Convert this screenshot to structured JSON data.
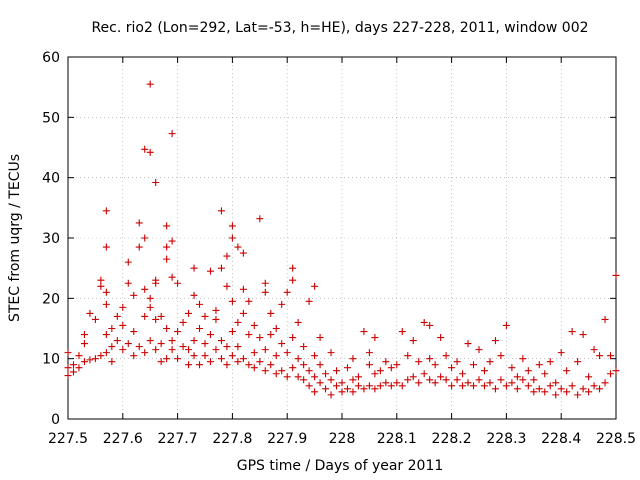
{
  "chart_data": {
    "type": "scatter",
    "title": "Rec. rio2 (Lon=292, Lat=-53, h=HE), days 227-228, 2011, window 002",
    "xlabel": "GPS time / Days of year 2011",
    "ylabel": "STEC from uqrg / TECUs",
    "xlim": [
      227.5,
      228.5
    ],
    "ylim": [
      0,
      60
    ],
    "xticks": [
      "227.5",
      "227.6",
      "227.7",
      "227.8",
      "227.9",
      "228",
      "228.1",
      "228.2",
      "228.3",
      "228.4",
      "228.5"
    ],
    "yticks": [
      "0",
      "10",
      "20",
      "30",
      "40",
      "50",
      "60"
    ],
    "grid": true,
    "marker": "plus",
    "color": "#cc0000",
    "points": [
      [
        227.5,
        7.2
      ],
      [
        227.5,
        8.5
      ],
      [
        227.5,
        11.0
      ],
      [
        227.51,
        7.8
      ],
      [
        227.51,
        9.0
      ],
      [
        227.52,
        8.5
      ],
      [
        227.52,
        10.5
      ],
      [
        227.53,
        9.5
      ],
      [
        227.53,
        12.5
      ],
      [
        227.53,
        14.0
      ],
      [
        227.54,
        9.8
      ],
      [
        227.54,
        17.5
      ],
      [
        227.55,
        10.0
      ],
      [
        227.55,
        16.5
      ],
      [
        227.56,
        10.5
      ],
      [
        227.56,
        23.0
      ],
      [
        227.56,
        22.0
      ],
      [
        227.57,
        11.0
      ],
      [
        227.57,
        14.0
      ],
      [
        227.57,
        19.0
      ],
      [
        227.57,
        21.0
      ],
      [
        227.57,
        28.5
      ],
      [
        227.57,
        34.5
      ],
      [
        227.58,
        12.0
      ],
      [
        227.58,
        15.0
      ],
      [
        227.58,
        9.5
      ],
      [
        227.59,
        13.0
      ],
      [
        227.59,
        17.0
      ],
      [
        227.6,
        11.5
      ],
      [
        227.6,
        15.5
      ],
      [
        227.6,
        18.5
      ],
      [
        227.61,
        12.5
      ],
      [
        227.61,
        22.5
      ],
      [
        227.61,
        26.0
      ],
      [
        227.62,
        10.5
      ],
      [
        227.62,
        14.5
      ],
      [
        227.62,
        20.5
      ],
      [
        227.63,
        12.0
      ],
      [
        227.63,
        28.5
      ],
      [
        227.63,
        32.5
      ],
      [
        227.64,
        11.0
      ],
      [
        227.64,
        17.0
      ],
      [
        227.64,
        21.5
      ],
      [
        227.64,
        30.0
      ],
      [
        227.64,
        44.7
      ],
      [
        227.65,
        13.0
      ],
      [
        227.65,
        18.5
      ],
      [
        227.65,
        44.2
      ],
      [
        227.65,
        55.5
      ],
      [
        227.65,
        20.0
      ],
      [
        227.66,
        11.5
      ],
      [
        227.66,
        16.5
      ],
      [
        227.66,
        22.5
      ],
      [
        227.66,
        23.0
      ],
      [
        227.66,
        39.2
      ],
      [
        227.67,
        9.5
      ],
      [
        227.67,
        12.5
      ],
      [
        227.67,
        17.0
      ],
      [
        227.68,
        10.0
      ],
      [
        227.68,
        15.0
      ],
      [
        227.68,
        26.5
      ],
      [
        227.68,
        28.5
      ],
      [
        227.68,
        32.0
      ],
      [
        227.69,
        11.5
      ],
      [
        227.69,
        13.0
      ],
      [
        227.69,
        29.5
      ],
      [
        227.69,
        47.3
      ],
      [
        227.69,
        23.5
      ],
      [
        227.7,
        10.0
      ],
      [
        227.7,
        14.5
      ],
      [
        227.7,
        22.5
      ],
      [
        227.71,
        12.0
      ],
      [
        227.71,
        16.0
      ],
      [
        227.72,
        9.0
      ],
      [
        227.72,
        11.5
      ],
      [
        227.72,
        17.5
      ],
      [
        227.73,
        10.5
      ],
      [
        227.73,
        13.0
      ],
      [
        227.73,
        20.5
      ],
      [
        227.73,
        25.0
      ],
      [
        227.74,
        9.0
      ],
      [
        227.74,
        15.0
      ],
      [
        227.74,
        19.0
      ],
      [
        227.75,
        10.5
      ],
      [
        227.75,
        12.5
      ],
      [
        227.75,
        17.0
      ],
      [
        227.76,
        9.5
      ],
      [
        227.76,
        14.0
      ],
      [
        227.76,
        24.5
      ],
      [
        227.77,
        11.5
      ],
      [
        227.77,
        16.5
      ],
      [
        227.77,
        18.0
      ],
      [
        227.78,
        10.0
      ],
      [
        227.78,
        13.0
      ],
      [
        227.78,
        25.0
      ],
      [
        227.78,
        34.5
      ],
      [
        227.79,
        9.0
      ],
      [
        227.79,
        12.0
      ],
      [
        227.79,
        22.0
      ],
      [
        227.79,
        27.0
      ],
      [
        227.8,
        10.5
      ],
      [
        227.8,
        14.5
      ],
      [
        227.8,
        19.5
      ],
      [
        227.8,
        32.0
      ],
      [
        227.8,
        30.0
      ],
      [
        227.81,
        9.5
      ],
      [
        227.81,
        12.0
      ],
      [
        227.81,
        28.5
      ],
      [
        227.81,
        16.0
      ],
      [
        227.82,
        10.0
      ],
      [
        227.82,
        17.5
      ],
      [
        227.82,
        21.5
      ],
      [
        227.82,
        27.5
      ],
      [
        227.83,
        9.0
      ],
      [
        227.83,
        14.0
      ],
      [
        227.83,
        19.5
      ],
      [
        227.84,
        8.5
      ],
      [
        227.84,
        11.0
      ],
      [
        227.84,
        15.5
      ],
      [
        227.85,
        9.5
      ],
      [
        227.85,
        13.5
      ],
      [
        227.85,
        33.2
      ],
      [
        227.86,
        8.0
      ],
      [
        227.86,
        11.5
      ],
      [
        227.86,
        22.5
      ],
      [
        227.86,
        21.0
      ],
      [
        227.87,
        9.0
      ],
      [
        227.87,
        14.0
      ],
      [
        227.87,
        17.5
      ],
      [
        227.88,
        7.5
      ],
      [
        227.88,
        10.5
      ],
      [
        227.88,
        15.0
      ],
      [
        227.89,
        8.0
      ],
      [
        227.89,
        12.5
      ],
      [
        227.89,
        19.0
      ],
      [
        227.9,
        7.0
      ],
      [
        227.9,
        11.0
      ],
      [
        227.9,
        21.0
      ],
      [
        227.91,
        8.5
      ],
      [
        227.91,
        13.5
      ],
      [
        227.91,
        25.0
      ],
      [
        227.91,
        23.0
      ],
      [
        227.92,
        7.0
      ],
      [
        227.92,
        10.0
      ],
      [
        227.92,
        16.0
      ],
      [
        227.93,
        6.5
      ],
      [
        227.93,
        9.0
      ],
      [
        227.93,
        12.0
      ],
      [
        227.94,
        5.5
      ],
      [
        227.94,
        8.0
      ],
      [
        227.94,
        19.5
      ],
      [
        227.95,
        4.5
      ],
      [
        227.95,
        7.0
      ],
      [
        227.95,
        10.5
      ],
      [
        227.95,
        22.0
      ],
      [
        227.96,
        6.0
      ],
      [
        227.96,
        9.0
      ],
      [
        227.96,
        13.5
      ],
      [
        227.97,
        5.0
      ],
      [
        227.97,
        7.5
      ],
      [
        227.98,
        4.0
      ],
      [
        227.98,
        6.5
      ],
      [
        227.98,
        11.0
      ],
      [
        227.99,
        5.5
      ],
      [
        227.99,
        8.0
      ],
      [
        228.0,
        4.5
      ],
      [
        228.0,
        6.0
      ],
      [
        228.01,
        5.0
      ],
      [
        228.01,
        8.5
      ],
      [
        228.02,
        4.5
      ],
      [
        228.02,
        6.5
      ],
      [
        228.02,
        10.0
      ],
      [
        228.03,
        5.5
      ],
      [
        228.03,
        7.0
      ],
      [
        228.04,
        5.0
      ],
      [
        228.04,
        14.5
      ],
      [
        228.05,
        5.5
      ],
      [
        228.05,
        9.0
      ],
      [
        228.05,
        11.0
      ],
      [
        228.06,
        5.0
      ],
      [
        228.06,
        7.5
      ],
      [
        228.06,
        13.5
      ],
      [
        228.07,
        5.5
      ],
      [
        228.07,
        8.0
      ],
      [
        228.08,
        6.0
      ],
      [
        228.08,
        9.5
      ],
      [
        228.09,
        5.5
      ],
      [
        228.09,
        8.5
      ],
      [
        228.1,
        6.0
      ],
      [
        228.1,
        9.0
      ],
      [
        228.11,
        5.5
      ],
      [
        228.11,
        14.5
      ],
      [
        228.12,
        6.5
      ],
      [
        228.12,
        10.5
      ],
      [
        228.13,
        7.0
      ],
      [
        228.13,
        13.0
      ],
      [
        228.14,
        6.0
      ],
      [
        228.14,
        9.5
      ],
      [
        228.15,
        7.5
      ],
      [
        228.15,
        16.0
      ],
      [
        228.16,
        6.5
      ],
      [
        228.16,
        10.0
      ],
      [
        228.16,
        15.5
      ],
      [
        228.17,
        6.0
      ],
      [
        228.17,
        9.0
      ],
      [
        228.18,
        7.0
      ],
      [
        228.18,
        13.5
      ],
      [
        228.19,
        6.5
      ],
      [
        228.19,
        10.5
      ],
      [
        228.2,
        5.5
      ],
      [
        228.2,
        8.5
      ],
      [
        228.21,
        6.5
      ],
      [
        228.21,
        9.5
      ],
      [
        228.22,
        5.5
      ],
      [
        228.22,
        7.5
      ],
      [
        228.23,
        6.0
      ],
      [
        228.23,
        12.5
      ],
      [
        228.24,
        5.5
      ],
      [
        228.24,
        9.0
      ],
      [
        228.25,
        6.5
      ],
      [
        228.25,
        11.5
      ],
      [
        228.26,
        5.5
      ],
      [
        228.26,
        8.0
      ],
      [
        228.27,
        6.0
      ],
      [
        228.27,
        9.5
      ],
      [
        228.28,
        5.0
      ],
      [
        228.28,
        13.0
      ],
      [
        228.29,
        6.5
      ],
      [
        228.29,
        10.5
      ],
      [
        228.3,
        5.5
      ],
      [
        228.3,
        15.5
      ],
      [
        228.31,
        6.0
      ],
      [
        228.31,
        8.5
      ],
      [
        228.32,
        5.0
      ],
      [
        228.32,
        7.0
      ],
      [
        228.33,
        6.5
      ],
      [
        228.33,
        10.0
      ],
      [
        228.34,
        5.5
      ],
      [
        228.34,
        8.0
      ],
      [
        228.35,
        4.5
      ],
      [
        228.35,
        6.5
      ],
      [
        228.36,
        5.0
      ],
      [
        228.36,
        9.0
      ],
      [
        228.37,
        4.5
      ],
      [
        228.37,
        7.5
      ],
      [
        228.38,
        5.5
      ],
      [
        228.38,
        9.5
      ],
      [
        228.39,
        4.0
      ],
      [
        228.39,
        6.0
      ],
      [
        228.4,
        5.0
      ],
      [
        228.4,
        11.0
      ],
      [
        228.41,
        4.5
      ],
      [
        228.41,
        8.0
      ],
      [
        228.42,
        5.5
      ],
      [
        228.42,
        14.5
      ],
      [
        228.43,
        4.0
      ],
      [
        228.43,
        9.5
      ],
      [
        228.44,
        5.0
      ],
      [
        228.44,
        14.0
      ],
      [
        228.45,
        4.5
      ],
      [
        228.45,
        7.0
      ],
      [
        228.46,
        5.5
      ],
      [
        228.46,
        11.5
      ],
      [
        228.47,
        5.0
      ],
      [
        228.47,
        10.5
      ],
      [
        228.48,
        6.0
      ],
      [
        228.48,
        16.5
      ],
      [
        228.49,
        7.5
      ],
      [
        228.49,
        10.5
      ],
      [
        228.5,
        8.0
      ],
      [
        228.5,
        23.8
      ]
    ]
  }
}
